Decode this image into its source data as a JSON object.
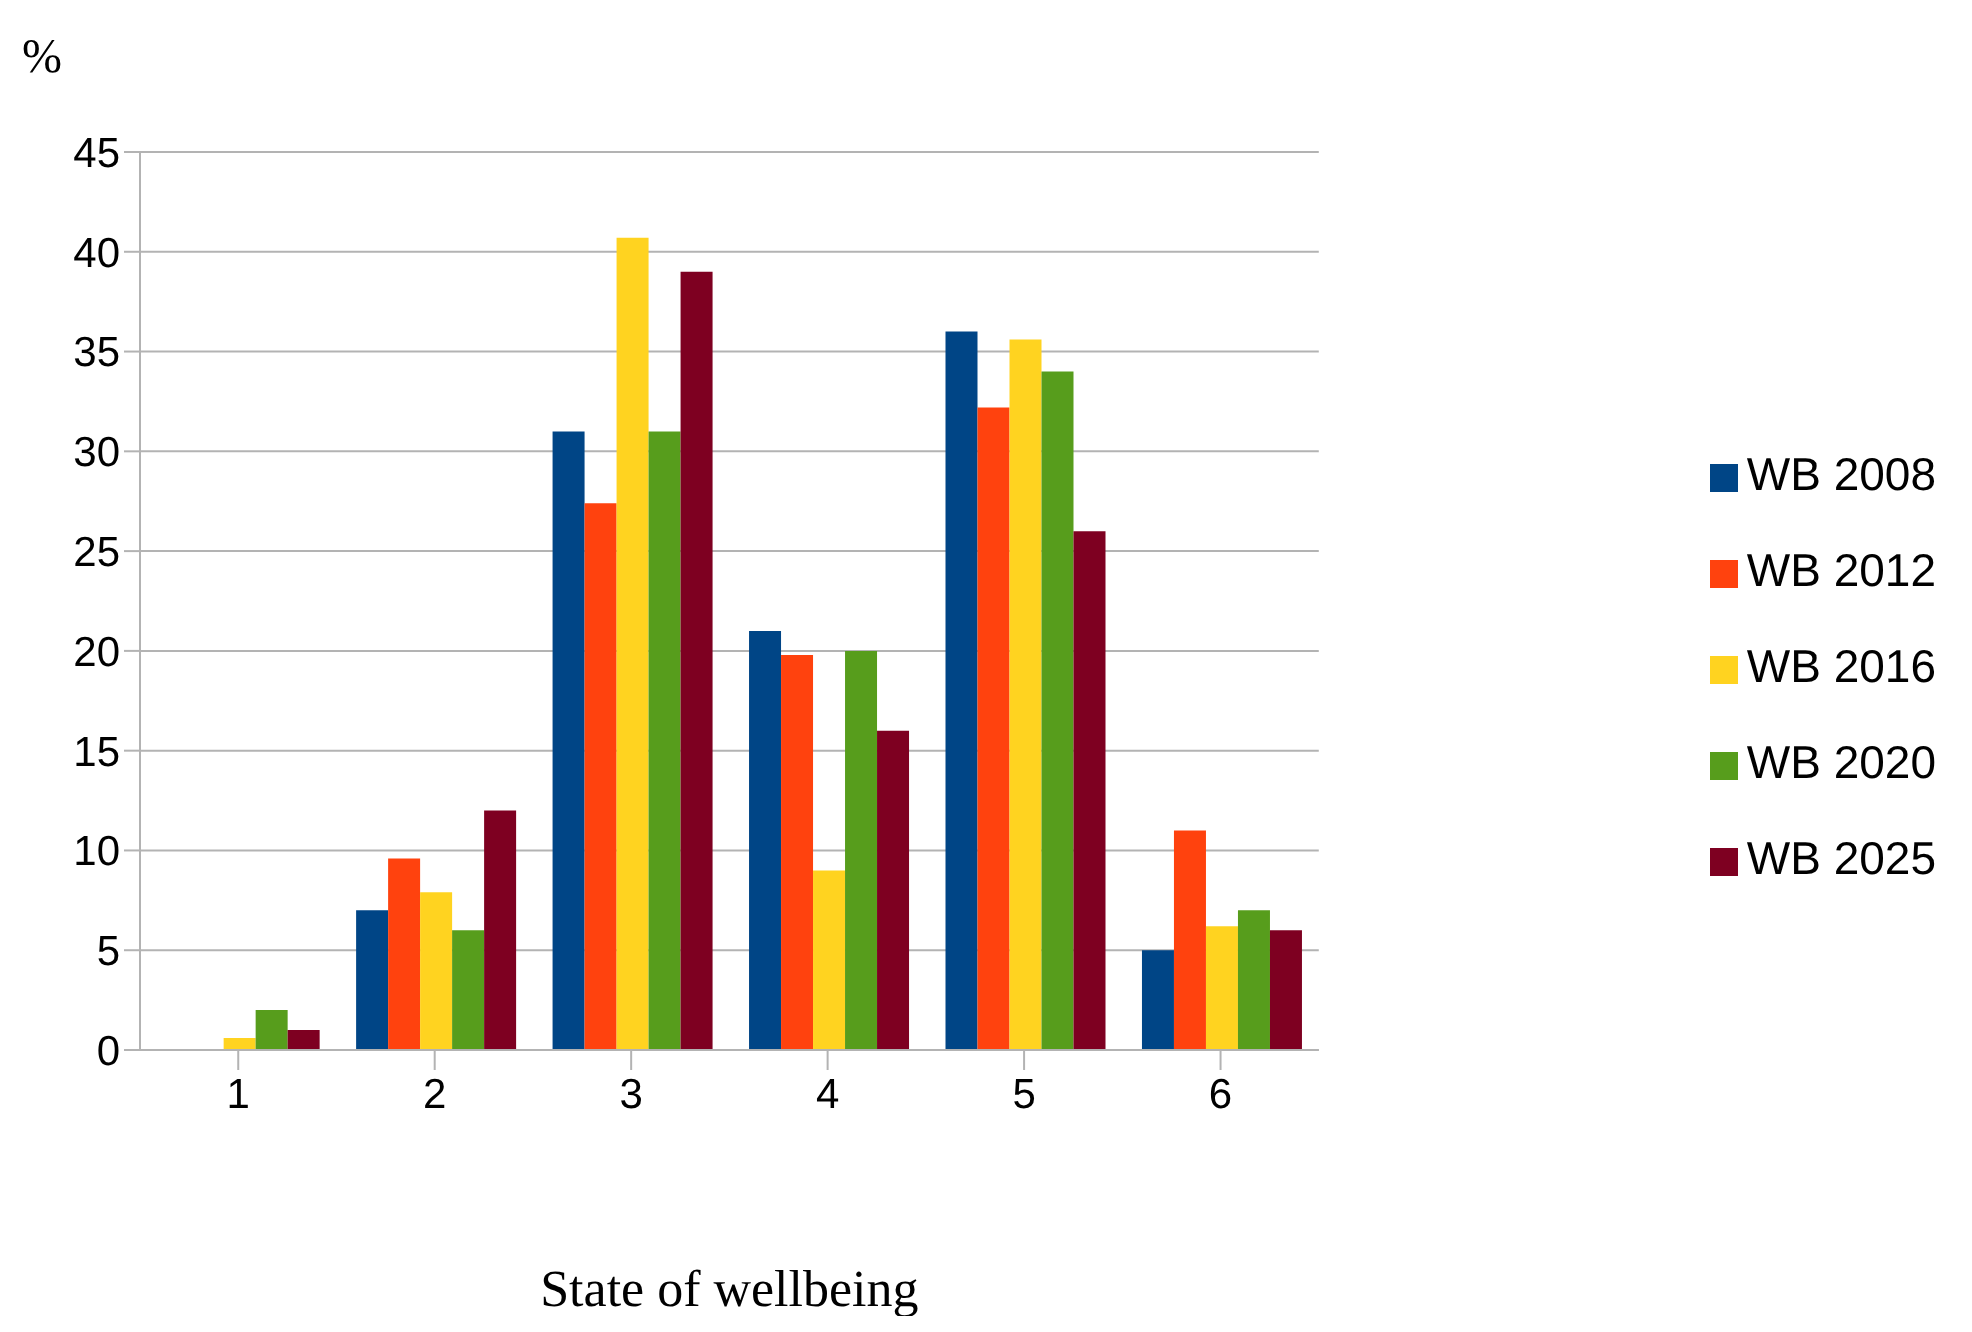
{
  "chart_data": {
    "type": "bar",
    "ylabel": "%",
    "xlabel": "State of wellbeing",
    "categories": [
      "1",
      "2",
      "3",
      "4",
      "5",
      "6"
    ],
    "series": [
      {
        "name": "WB 2008",
        "color": "#004586",
        "values": [
          0,
          7,
          31,
          21,
          36,
          5
        ]
      },
      {
        "name": "WB 2012",
        "color": "#ff420e",
        "values": [
          0,
          9.6,
          27.4,
          19.8,
          32.2,
          11
        ]
      },
      {
        "name": "WB 2016",
        "color": "#ffd320",
        "values": [
          0.6,
          7.9,
          40.7,
          9,
          35.6,
          6.2
        ]
      },
      {
        "name": "WB 2020",
        "color": "#579d1c",
        "values": [
          2,
          6,
          31,
          20,
          34,
          7
        ]
      },
      {
        "name": "WB 2025",
        "color": "#7e0021",
        "values": [
          1,
          12,
          39,
          16,
          26,
          6
        ]
      }
    ],
    "ylim": [
      0,
      45
    ],
    "yticks": [
      0,
      5,
      10,
      15,
      20,
      25,
      30,
      35,
      40,
      45
    ],
    "grid": "y",
    "legend": "right"
  }
}
